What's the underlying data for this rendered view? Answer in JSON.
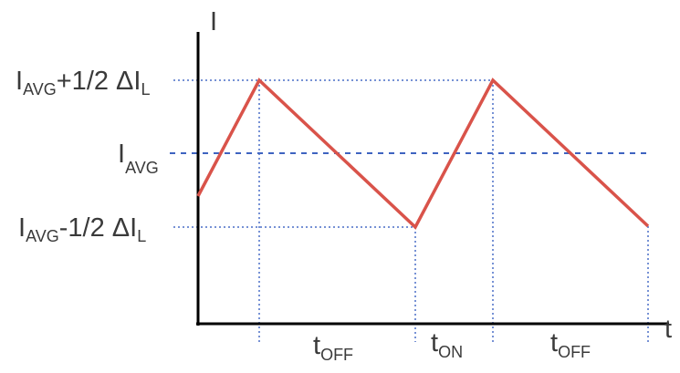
{
  "axes": {
    "y_label": "I",
    "x_label": "t"
  },
  "levels": {
    "max": {
      "main": "I",
      "sub": "AVG",
      "rest": "+1/2 ΔI",
      "sub2": "L"
    },
    "avg": {
      "main": "I",
      "sub": "AVG"
    },
    "min": {
      "main": "I",
      "sub": "AVG",
      "rest": "-1/2 ΔI",
      "sub2": "L"
    }
  },
  "intervals": [
    {
      "main": "t",
      "sub": "OFF"
    },
    {
      "main": "t",
      "sub": "ON"
    },
    {
      "main": "t",
      "sub": "OFF"
    }
  ],
  "colors": {
    "waveform": "#d9534a",
    "guides": "#4a6fc7",
    "axes": "#000000",
    "text": "#3a3a3a"
  }
}
